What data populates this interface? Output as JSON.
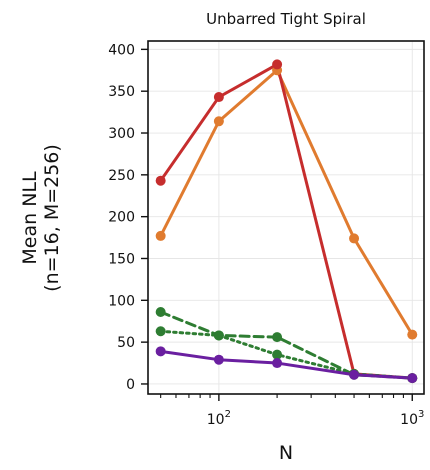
{
  "chart_data": {
    "type": "line",
    "title": "Unbarred Tight Spiral",
    "xlabel": "N",
    "ylabel_line1": "Mean NLL",
    "ylabel_line2": "(n=16, M=256)",
    "x_scale": "log",
    "xlim": [
      43,
      1150
    ],
    "ylim": [
      -12,
      410
    ],
    "grid": true,
    "y_ticks": [
      0,
      50,
      100,
      150,
      200,
      250,
      300,
      350,
      400
    ],
    "y_tick_labels": [
      "0",
      "50",
      "100",
      "150",
      "200",
      "250",
      "300",
      "350",
      "400"
    ],
    "x_major_ticks": [
      100,
      1000
    ],
    "x_tick_labels": [
      {
        "base": "10",
        "exp": "2"
      },
      {
        "base": "10",
        "exp": "3"
      }
    ],
    "x_minor_ticks": [
      50,
      60,
      70,
      80,
      90,
      200,
      300,
      400,
      500,
      600,
      700,
      800,
      900
    ],
    "x": [
      50,
      100,
      200,
      500,
      1000
    ],
    "series": [
      {
        "color": "#d95f2b",
        "alt_color": "#e07b2f",
        "dash": "solid",
        "values": [
          177,
          314,
          375,
          174,
          59
        ]
      },
      {
        "color": "#c62d2d",
        "dash": "solid",
        "values": [
          243,
          343,
          382,
          12,
          7
        ]
      },
      {
        "color": "#2e7d32",
        "dash": "dashed",
        "values": [
          86,
          58,
          56,
          11,
          7
        ]
      },
      {
        "color": "#2e7d32",
        "dash": "dotted",
        "values": [
          63,
          58,
          35,
          12,
          7
        ]
      },
      {
        "color": "#6a1fa0",
        "dash": "solid",
        "values": [
          39,
          29,
          25,
          11,
          7
        ]
      }
    ]
  }
}
